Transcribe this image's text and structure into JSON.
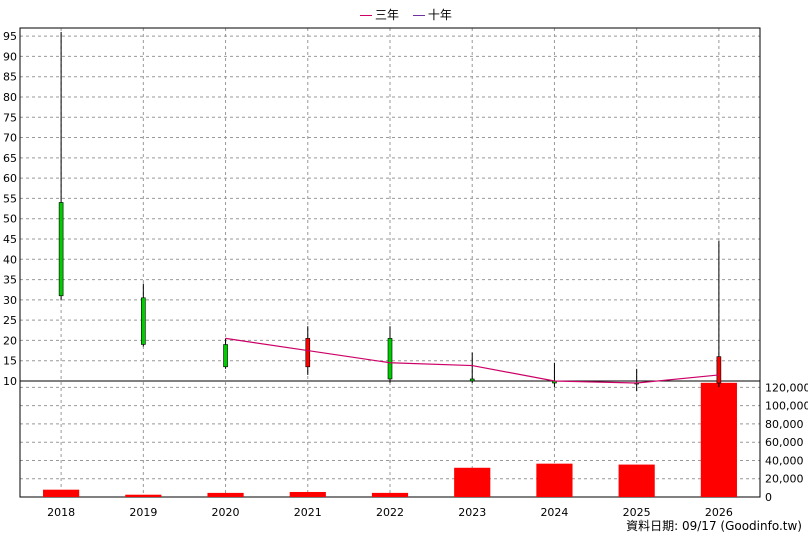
{
  "legend": {
    "three_year": {
      "label": "三年",
      "color": "#cc0066"
    },
    "ten_year": {
      "label": "十年",
      "color": "#7030a0"
    }
  },
  "credit": "資料日期: 09/17 (Goodinfo.tw)",
  "colors": {
    "up": "#ff0000",
    "down": "#00cc00",
    "wick": "#000000",
    "grid": "#999999",
    "volume": "#ff0000"
  },
  "chart_data": {
    "type": "candlestick",
    "categories": [
      "2018",
      "2019",
      "2020",
      "2021",
      "2022",
      "2023",
      "2024",
      "2025",
      "2026"
    ],
    "price_axis": {
      "ylim": [
        10,
        97
      ],
      "ticks": [
        10,
        15,
        20,
        25,
        30,
        35,
        40,
        45,
        50,
        55,
        60,
        65,
        70,
        75,
        80,
        85,
        90,
        95
      ]
    },
    "candles": [
      {
        "year": "2018",
        "open": 54,
        "high": 96,
        "low": 30,
        "close": 31
      },
      {
        "year": "2019",
        "open": 30.5,
        "high": 34,
        "low": 18.5,
        "close": 19
      },
      {
        "year": "2020",
        "open": 19,
        "high": 20.5,
        "low": 13,
        "close": 13.5
      },
      {
        "year": "2021",
        "open": 13.5,
        "high": 23.5,
        "low": 11.5,
        "close": 20.5
      },
      {
        "year": "2022",
        "open": 20.5,
        "high": 23.5,
        "low": 9.5,
        "close": 10.5
      },
      {
        "year": "2023",
        "open": 10.5,
        "high": 17,
        "low": 9.5,
        "close": 10
      },
      {
        "year": "2024",
        "open": 10,
        "high": 14.5,
        "low": 8.5,
        "close": 9.5
      },
      {
        "year": "2025",
        "open": 9.5,
        "high": 13,
        "low": 7.5,
        "close": 9.5
      },
      {
        "year": "2026",
        "open": 9.5,
        "high": 44.5,
        "low": 8.5,
        "close": 16
      }
    ],
    "series": [
      {
        "name": "三年",
        "x": [
          "2020",
          "2021",
          "2022",
          "2023",
          "2024",
          "2025",
          "2026"
        ],
        "values": [
          20.5,
          17.5,
          14.5,
          13.8,
          10,
          9.5,
          11.5
        ]
      }
    ],
    "volume_axis": {
      "ylim": [
        0,
        127000
      ],
      "ticks": [
        0,
        20000,
        40000,
        60000,
        80000,
        100000,
        120000
      ],
      "tick_labels": [
        "0",
        "20,000",
        "40,000",
        "60,000",
        "80,000",
        "100,000",
        "120,000"
      ]
    },
    "volume": [
      8000,
      2500,
      4500,
      5500,
      4500,
      32000,
      36500,
      35500,
      125000
    ],
    "grid": true,
    "legend_position": "top-center"
  }
}
